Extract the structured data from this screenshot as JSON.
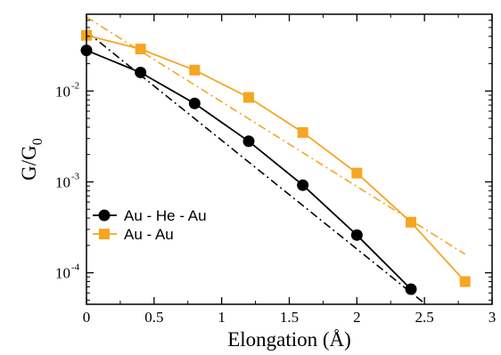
{
  "chart_data": {
    "type": "line",
    "title": "",
    "xlabel": "Elongation (Å)",
    "ylabel": {
      "base": "G/G",
      "sub": "0"
    },
    "xlim": [
      0,
      3
    ],
    "ylim": [
      4.5e-05,
      0.07
    ],
    "yscale": "log",
    "grid": false,
    "legend_position": "lower-left",
    "x_ticks": [
      {
        "value": 0,
        "label": "0"
      },
      {
        "value": 0.5,
        "label": "0.5"
      },
      {
        "value": 1,
        "label": "1"
      },
      {
        "value": 1.5,
        "label": "1.5"
      },
      {
        "value": 2,
        "label": "2"
      },
      {
        "value": 2.5,
        "label": "2.5"
      },
      {
        "value": 3,
        "label": "3"
      }
    ],
    "y_ticks": [
      {
        "value": 0.0001,
        "base": "10",
        "exp": "-4"
      },
      {
        "value": 0.001,
        "base": "10",
        "exp": "-3"
      },
      {
        "value": 0.01,
        "base": "10",
        "exp": "-2"
      }
    ],
    "series": [
      {
        "name": "Au - He - Au",
        "color": "#000000",
        "marker": "circle",
        "x": [
          0,
          0.4,
          0.8,
          1.2,
          1.6,
          2.0,
          2.4
        ],
        "y": [
          0.028,
          0.016,
          0.0073,
          0.0028,
          0.00092,
          0.00026,
          6.6e-05
        ]
      },
      {
        "name": "Au - Au",
        "color": "#f5a623",
        "marker": "square",
        "x": [
          0,
          0.4,
          0.8,
          1.2,
          1.6,
          2.0,
          2.4,
          2.8
        ],
        "y": [
          0.041,
          0.029,
          0.017,
          0.0085,
          0.0035,
          0.00125,
          0.00036,
          8e-05
        ]
      }
    ],
    "fits": [
      {
        "color": "#000000",
        "style": "dash-dot",
        "x": [
          0,
          2.6
        ],
        "y": [
          0.045,
          3.5e-05
        ]
      },
      {
        "color": "#f5a623",
        "style": "dash-dot",
        "x": [
          0,
          2.8
        ],
        "y": [
          0.065,
          0.00016
        ]
      }
    ]
  }
}
